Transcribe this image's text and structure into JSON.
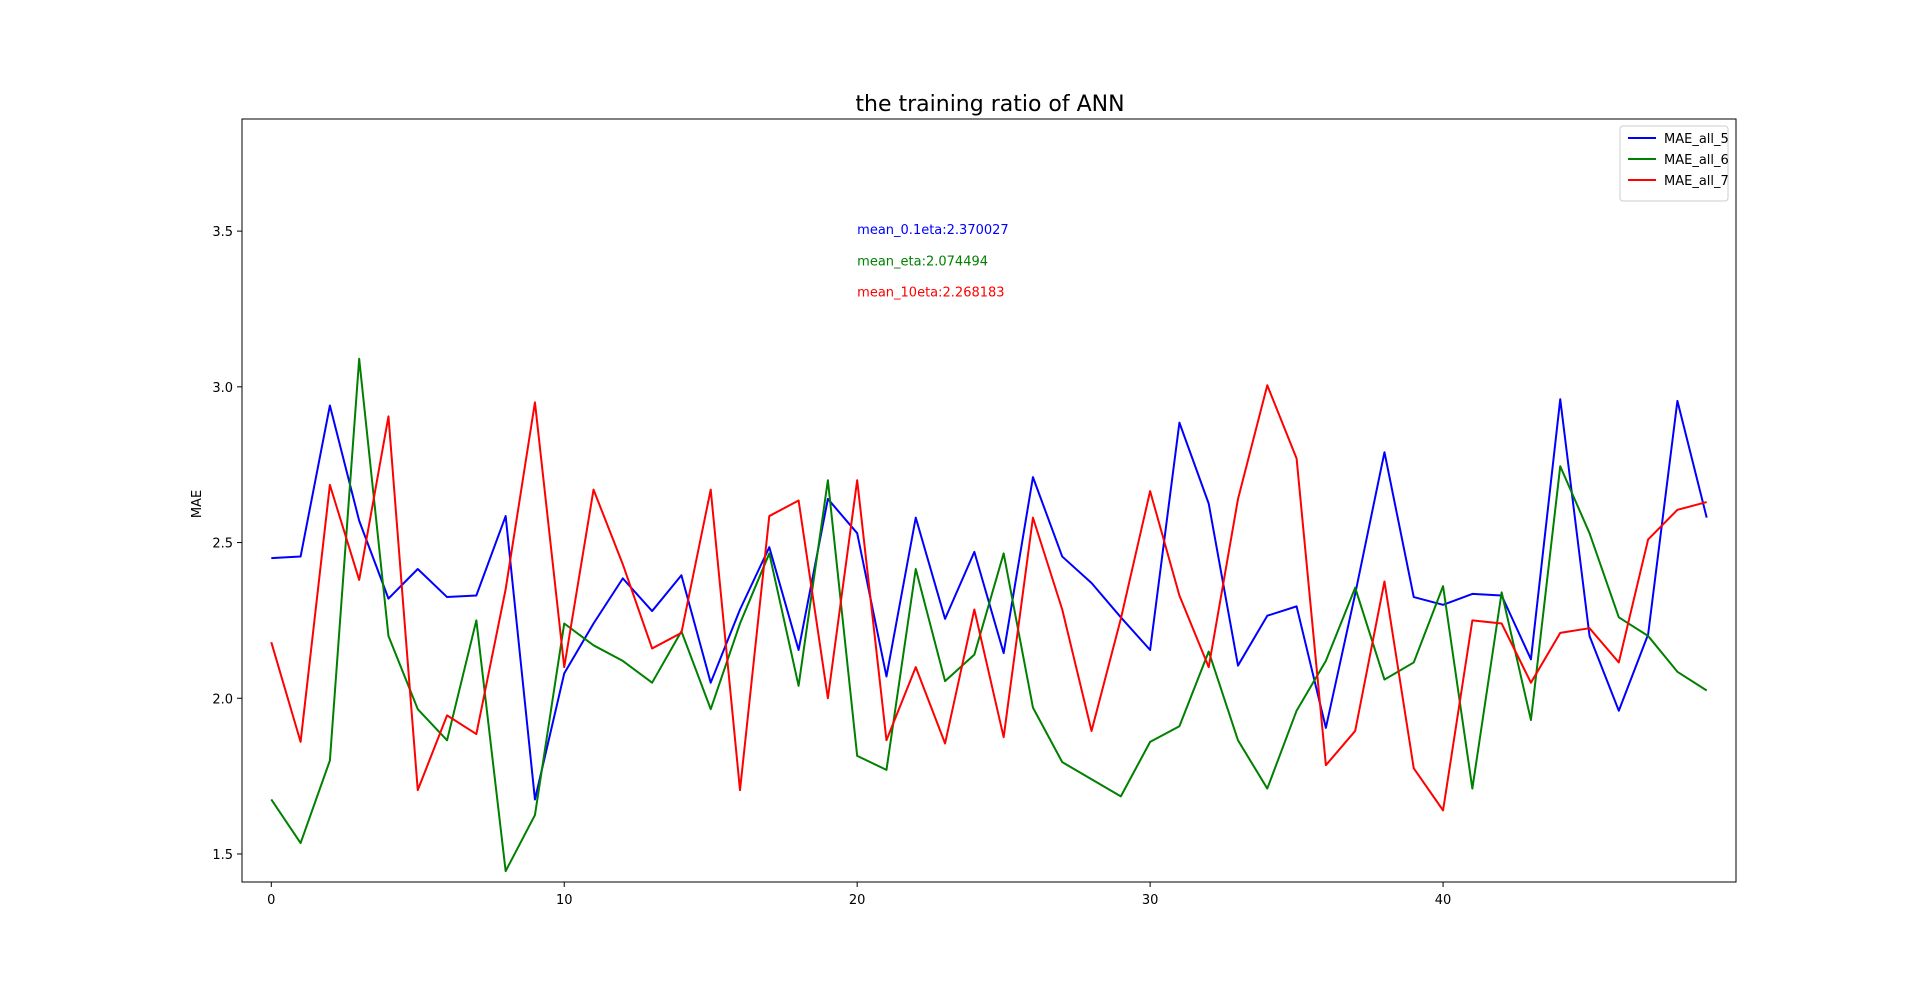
{
  "chart_data": {
    "type": "line",
    "title": "the training ratio of ANN",
    "xlabel": "",
    "ylabel": "MAE",
    "xlim": [
      -1,
      50
    ],
    "ylim": [
      1.41,
      3.86
    ],
    "xticks": [
      0,
      10,
      20,
      30,
      40
    ],
    "yticks": [
      1.5,
      2.0,
      2.5,
      3.0,
      3.5
    ],
    "grid": false,
    "legend_position": "top-right",
    "x": [
      0,
      1,
      2,
      3,
      4,
      5,
      6,
      7,
      8,
      9,
      10,
      11,
      12,
      13,
      14,
      15,
      16,
      17,
      18,
      19,
      20,
      21,
      22,
      23,
      24,
      25,
      26,
      27,
      28,
      29,
      30,
      31,
      32,
      33,
      34,
      35,
      36,
      37,
      38,
      39,
      40,
      41,
      42,
      43,
      44,
      45,
      46,
      47,
      48,
      49
    ],
    "series": [
      {
        "name": "MAE_all_5",
        "color": "#0000ff",
        "values": [
          2.45,
          2.455,
          2.94,
          2.57,
          2.32,
          2.415,
          2.325,
          2.33,
          2.585,
          1.675,
          2.08,
          2.24,
          2.385,
          2.28,
          2.395,
          2.05,
          2.285,
          2.485,
          2.155,
          2.64,
          2.53,
          2.07,
          2.58,
          2.255,
          2.47,
          2.145,
          2.71,
          2.455,
          2.37,
          2.26,
          2.155,
          2.885,
          2.625,
          2.105,
          2.265,
          2.295,
          1.905,
          2.335,
          2.79,
          2.325,
          2.3,
          2.335,
          2.33,
          2.125,
          2.96,
          2.2,
          1.96,
          2.205,
          2.955,
          2.58
        ]
      },
      {
        "name": "MAE_all_6",
        "color": "#008000",
        "values": [
          1.675,
          1.535,
          1.8,
          3.09,
          2.2,
          1.965,
          1.865,
          2.25,
          1.445,
          1.625,
          2.24,
          2.17,
          2.12,
          2.05,
          2.215,
          1.965,
          2.24,
          2.465,
          2.04,
          2.7,
          1.815,
          1.77,
          2.415,
          2.055,
          2.14,
          2.465,
          1.97,
          1.795,
          1.74,
          1.685,
          1.86,
          1.91,
          2.15,
          1.865,
          1.71,
          1.96,
          2.12,
          2.355,
          2.06,
          2.115,
          2.36,
          1.71,
          2.34,
          1.93,
          2.745,
          2.53,
          2.26,
          2.2,
          2.085,
          2.025
        ]
      },
      {
        "name": "MAE_all_7",
        "color": "#ff0000",
        "values": [
          2.18,
          1.86,
          2.685,
          2.38,
          2.905,
          1.705,
          1.945,
          1.885,
          2.35,
          2.95,
          2.1,
          2.67,
          2.43,
          2.16,
          2.21,
          2.67,
          1.705,
          2.585,
          2.635,
          2.0,
          2.7,
          1.865,
          2.1,
          1.855,
          2.285,
          1.875,
          2.58,
          2.285,
          1.895,
          2.255,
          2.665,
          2.33,
          2.1,
          2.64,
          3.005,
          2.77,
          1.785,
          1.895,
          2.375,
          1.775,
          1.64,
          2.25,
          2.24,
          2.05,
          2.21,
          2.225,
          2.115,
          2.51,
          2.605,
          2.63
        ]
      }
    ],
    "annotations": [
      {
        "text": "mean_0.1eta:2.370027",
        "color": "#0000ff",
        "x": 20.0,
        "y": 3.49
      },
      {
        "text": "mean_eta:2.074494",
        "color": "#008000",
        "x": 20.0,
        "y": 3.39
      },
      {
        "text": "mean_10eta:2.268183",
        "color": "#ff0000",
        "x": 20.0,
        "y": 3.29
      }
    ]
  }
}
